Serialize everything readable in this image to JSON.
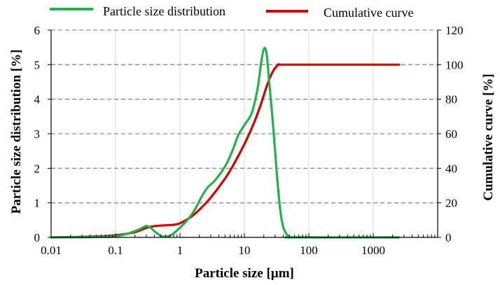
{
  "chart_data": {
    "type": "line",
    "xlabel": "Particle size [µm]",
    "ylabel_left": "Particle size distribution [%]",
    "ylabel_right": "Cumulative curve [%]",
    "x_scale": "log",
    "xlim": [
      0.01,
      10000
    ],
    "ylim_left": [
      0,
      6
    ],
    "ylim_right": [
      0,
      120
    ],
    "x_ticks": [
      {
        "value": 0.01,
        "label": "0.01"
      },
      {
        "value": 0.1,
        "label": "0.1"
      },
      {
        "value": 1,
        "label": "1"
      },
      {
        "value": 10,
        "label": "10"
      },
      {
        "value": 100,
        "label": "100"
      },
      {
        "value": 1000,
        "label": "1000"
      }
    ],
    "y_ticks_left": [
      "0",
      "1",
      "2",
      "3",
      "4",
      "5",
      "6"
    ],
    "y_ticks_right": [
      "0",
      "20",
      "40",
      "60",
      "80",
      "100",
      "120"
    ],
    "grid": "horizontal dashed, vertical solid light",
    "legend_position": "top",
    "series": [
      {
        "name": "Particle size distribution",
        "color": "#22b14c",
        "axis": "left",
        "points": [
          [
            0.01,
            0
          ],
          [
            0.05,
            0.01
          ],
          [
            0.1,
            0.03
          ],
          [
            0.15,
            0.1
          ],
          [
            0.2,
            0.18
          ],
          [
            0.25,
            0.26
          ],
          [
            0.3,
            0.33
          ],
          [
            0.35,
            0.28
          ],
          [
            0.4,
            0.18
          ],
          [
            0.5,
            0.05
          ],
          [
            0.6,
            0.02
          ],
          [
            0.7,
            0.05
          ],
          [
            0.8,
            0.12
          ],
          [
            1,
            0.28
          ],
          [
            1.3,
            0.5
          ],
          [
            1.7,
            0.8
          ],
          [
            2.2,
            1.2
          ],
          [
            2.7,
            1.45
          ],
          [
            3.5,
            1.65
          ],
          [
            5,
            2.05
          ],
          [
            6.5,
            2.5
          ],
          [
            8,
            2.95
          ],
          [
            10,
            3.25
          ],
          [
            13,
            3.6
          ],
          [
            16,
            4.3
          ],
          [
            18,
            5.0
          ],
          [
            20,
            5.45
          ],
          [
            22,
            5.35
          ],
          [
            24,
            4.6
          ],
          [
            28,
            3.2
          ],
          [
            32,
            1.8
          ],
          [
            36,
            0.8
          ],
          [
            40,
            0.3
          ],
          [
            45,
            0.1
          ],
          [
            50,
            0.02
          ],
          [
            60,
            0
          ],
          [
            2500,
            0
          ]
        ]
      },
      {
        "name": "Cumulative curve",
        "color": "#d00000",
        "axis": "right",
        "points": [
          [
            0.01,
            0
          ],
          [
            0.05,
            0.5
          ],
          [
            0.1,
            1.2
          ],
          [
            0.2,
            3
          ],
          [
            0.3,
            5.5
          ],
          [
            0.4,
            6.5
          ],
          [
            0.6,
            7
          ],
          [
            0.8,
            7.3
          ],
          [
            1,
            8.2
          ],
          [
            1.5,
            12
          ],
          [
            2,
            16
          ],
          [
            3,
            23
          ],
          [
            5,
            34
          ],
          [
            7,
            43
          ],
          [
            10,
            54
          ],
          [
            14,
            66
          ],
          [
            18,
            77
          ],
          [
            22,
            87
          ],
          [
            26,
            94
          ],
          [
            30,
            98
          ],
          [
            35,
            100
          ],
          [
            50,
            100
          ],
          [
            2500,
            100
          ]
        ]
      }
    ]
  }
}
